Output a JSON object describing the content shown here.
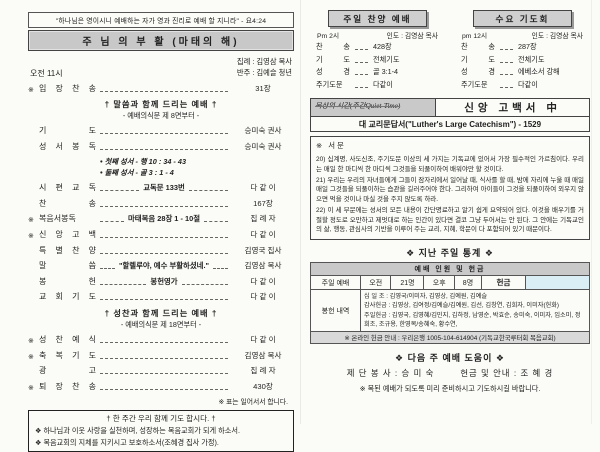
{
  "colors": {
    "paper": "#fbfbf7",
    "bar_gray": "#c8c8c8",
    "highlight_cyan": "#daeef5",
    "border": "#444444"
  },
  "left": {
    "quote": "\"하나님은 영이시니 예배하는 자가 영과 진리로 예배 할 지니라\" - 요4:24",
    "title": "주 님 의 부 활 (마태의 해)",
    "time": "오전 11시",
    "leader": "집례 :  김영삼 목사",
    "accompanist": "반주 :  김예슬 청년",
    "section1": {
      "title": "† 말씀과 함께 드리는 예배 †",
      "sub": "- 예배의식문 제 8면부터 -"
    },
    "section2": {
      "title": "† 성찬과 함께 드리는 예배 †",
      "sub": "- 예배의식문 제 18면부터 -"
    },
    "order": [
      {
        "star": "※",
        "label": "입 장 찬 송",
        "center": "",
        "right": "31장"
      },
      {
        "star": "",
        "label": "기 도",
        "center": "",
        "right": "승미숙 권사"
      },
      {
        "star": "",
        "label": "성 서 봉 독",
        "center": "",
        "right": "승미숙 권사"
      },
      {
        "star": "",
        "label": "시 편 교 독",
        "center": "교독문 133번",
        "right": "다 같 이"
      },
      {
        "star": "",
        "label": "찬 송",
        "center": "",
        "right": "167장"
      },
      {
        "star": "※",
        "label": "복음서봉독",
        "center": "마태복음 28장 1 - 10절",
        "right": "집 례 자"
      },
      {
        "star": "※",
        "label": "신 앙 고 백",
        "center": "",
        "right": "다 같 이"
      },
      {
        "star": "",
        "label": "특 별 찬 양",
        "center": "",
        "right": "김영국 집사"
      },
      {
        "star": "",
        "label": "말 씀",
        "center": "\"할렐루야, 예수 부활하셨네.\"",
        "right": "김영삼 목사"
      },
      {
        "star": "",
        "label": "봉 헌",
        "center": "봉헌영가",
        "right": "다 같 이"
      },
      {
        "star": "",
        "label": "교 회 기 도",
        "center": "",
        "right": "다 같 이"
      },
      {
        "star": "※",
        "label": "성 찬 예 식",
        "center": "",
        "right": "다 같 이"
      },
      {
        "star": "※",
        "label": "축 복 기 도",
        "center": "",
        "right": "김영삼 목사"
      },
      {
        "star": "",
        "label": "광 고",
        "center": "",
        "right": "집 례 자"
      },
      {
        "star": "※",
        "label": "퇴 장 찬 송",
        "center": "",
        "right": "430장"
      }
    ],
    "scripture_notes": [
      "• 첫째 성서 - 행 10 : 34 - 43",
      "• 둘째 성서 - 골 3 : 1 - 4"
    ],
    "stand_note": "※ 표는 일어서서 합니다.",
    "prayer_box": {
      "title": "† 한 주간 우리 함께 기도 합시다. †",
      "items": [
        "❖ 하나님과 이웃 사랑을 실천하며, 성장하는 복음교회가 되게 하소서.",
        "❖ 복음교회의 지체를 지키시고 보호하소서(조혜경 집사 가정)."
      ]
    }
  },
  "right": {
    "sunday_praise": {
      "title": "주일 찬양 예배",
      "time": "Pm 2시",
      "leader": "인도 : 김영삼 목사",
      "rows": [
        {
          "label": "찬 송",
          "value": "428장"
        },
        {
          "label": "기 도",
          "value": "전체기도"
        },
        {
          "label": "성 경",
          "value": "골 3:1-4"
        },
        {
          "label": "주기도문",
          "value": "다같이"
        }
      ]
    },
    "wednesday": {
      "title": "수요 기도회",
      "time": "pm 12시",
      "leader": "인도 : 김영삼 목사",
      "rows": [
        {
          "label": "찬 송",
          "value": "287장"
        },
        {
          "label": "기 도",
          "value": "전체기도"
        },
        {
          "label": "성 경",
          "value": "에베소서 강해"
        },
        {
          "label": "주기도문",
          "value": "다같이"
        }
      ]
    },
    "meditation_bar": {
      "left": "묵상의 시간(주간Quiet-Time)",
      "right": "신앙 고백서 中"
    },
    "catechism": {
      "title": "대 교리문답서(\"Luther's Large Catechism\") - 1529",
      "preface_label": "※ 서문",
      "paragraphs": [
        "20) 십계명, 사도신조, 주기도문 이상의 세 가지는 기독교에 있어서 가장 필수적인 가르침이다. 우리는 매일 한 마디씩 한 마디씩 그것들을 되풀이하여 배워야만 할 것이다.",
        "21) 우리는 우리의 자녀들에게 그들이 잠자리에서 일어날 때, 식사를 할 때, 밤에 자리에 누울 때 매일매일 그것들을 되풀이하는 습관을 길러주어야 한다. 그리하여 아이들이 그것을 되풀이하여 외우지 않으면 먹을 것이나 마실 것을 주지 않도록 하라.",
        "22) 이 세 부문에는 성서의 모든 내용이 간단명료하고 알기 쉽게 요약되어 있다. 이것을 배우기를 거절할 정도로 오만하고 제멋대로 하는 인간이 있다면 결코 그냥 두어서는 안 된다. 그 안에는 기독교인의 삶, 행동, 관심사의 기반을 이루어 주는 교리, 지혜, 학문이 다 포함되어 있기 때문이다."
      ]
    },
    "stats": {
      "heading": "❖ 지난 주일 통계 ❖",
      "table_title": "예배 인원 및 헌금",
      "attend": {
        "c0": "주일 예배",
        "c1": "오전",
        "c2": "21명",
        "c3": "오후",
        "c4": "8명",
        "c5": "헌금",
        "c6": ""
      },
      "offering_label": "봉헌 내역",
      "offering_lines": [
        "십 일 조 : 김영국/이미자, 김영상, 김예원, 김예슬",
        "감사헌금 : 김영상, 김여정/김예슬/김예원, 김선, 김창연, 김희자, 이미자(헌화)",
        "주일헌금 : 김영국, 김영혜/김민지, 김하정, 남영순, 박효순, 송미숙, 이미자, 임소미, 정희조, 조규용, 한영복/송혜숙, 황수연,"
      ],
      "online": "※ 온라인 헌금 안내 : 우리은행 1005-104-614904 (기독교한국루터회 복음교회)"
    },
    "next_week": {
      "heading": "❖ 다음 주 예배 도움이 ❖",
      "altar": "제 단 봉 사  :  승 미 숙",
      "usher": "헌금 및 안내  :  조 혜 경",
      "note": "※ 복된 예배가 되도록 미리 준비하시고 기도하시길 바랍니다."
    }
  }
}
